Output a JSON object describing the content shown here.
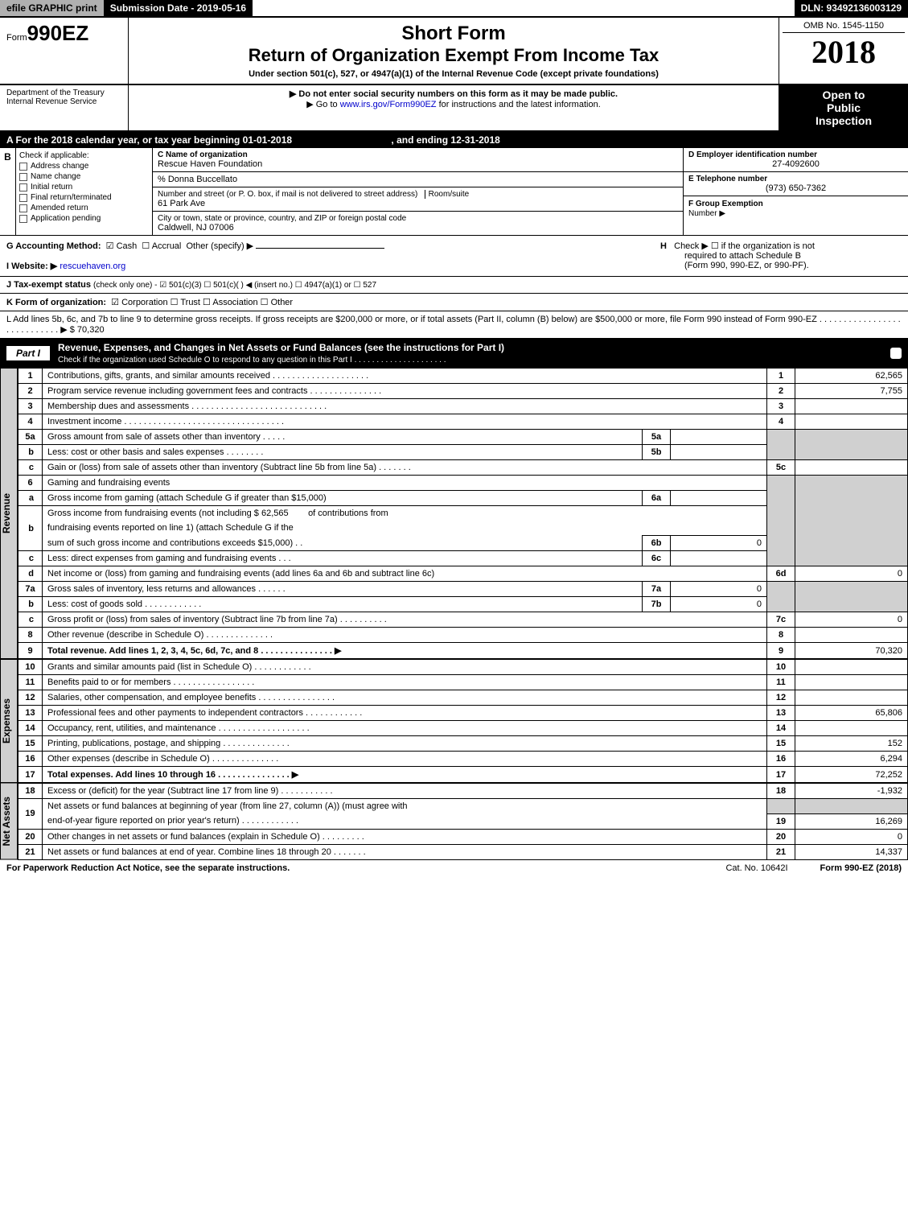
{
  "top": {
    "efile": "efile GRAPHIC print",
    "submission": "Submission Date - 2019-05-16",
    "dln": "DLN: 93492136003129"
  },
  "header": {
    "form_prefix": "Form",
    "form_number": "990EZ",
    "short_form": "Short Form",
    "title": "Return of Organization Exempt From Income Tax",
    "subtitle": "Under section 501(c), 527, or 4947(a)(1) of the Internal Revenue Code (except private foundations)",
    "omb": "OMB No. 1545-1150",
    "year": "2018",
    "dept": "Department of the Treasury",
    "irs": "Internal Revenue Service",
    "notice1": "▶ Do not enter social security numbers on this form as it may be made public.",
    "notice2_pre": "▶ Go to ",
    "notice2_link": "www.irs.gov/Form990EZ",
    "notice2_post": " for instructions and the latest information.",
    "open": "Open to",
    "public": "Public",
    "inspection": "Inspection"
  },
  "period": {
    "a_text": "A For the 2018 calendar year, or tax year beginning 01-01-2018",
    "ending": ", and ending 12-31-2018"
  },
  "box_b": {
    "label_b": "B",
    "check_if": "Check if applicable:",
    "opts": [
      "Address change",
      "Name change",
      "Initial return",
      "Final return/terminated",
      "Amended return",
      "Application pending"
    ]
  },
  "box_c": {
    "c_label": "C Name of organization",
    "org_name": "Rescue Haven Foundation",
    "care_of": "% Donna Buccellato",
    "addr_label": "Number and street (or P. O. box, if mail is not delivered to street address)",
    "room_label": "Room/suite",
    "addr": "61 Park Ave",
    "city_label": "City or town, state or province, country, and ZIP or foreign postal code",
    "city": "Caldwell, NJ  07006"
  },
  "box_d": {
    "d_label": "D Employer identification number",
    "ein": "27-4092600",
    "e_label": "E Telephone number",
    "phone": "(973) 650-7362",
    "f_label": "F Group Exemption",
    "f_label2": "Number   ▶"
  },
  "row_g": {
    "g_label": "G Accounting Method:",
    "cash": "Cash",
    "accrual": "Accrual",
    "other": "Other (specify) ▶",
    "h_label": "H",
    "h_text1": "Check ▶   ☐  if the organization is not",
    "h_text2": "required to attach Schedule B",
    "h_text3": "(Form 990, 990-EZ, or 990-PF)."
  },
  "row_i": {
    "label": "I Website: ▶",
    "site": "rescuehaven.org"
  },
  "row_j": {
    "label": "J Tax-exempt status",
    "rest": "(check only one) - ☑ 501(c)(3)  ☐ 501(c)(  ) ◀ (insert no.)  ☐ 4947(a)(1) or  ☐ 527"
  },
  "row_k": {
    "label": "K Form of organization:",
    "rest": "☑ Corporation   ☐ Trust   ☐ Association   ☐ Other"
  },
  "row_l": {
    "text": "L Add lines 5b, 6c, and 7b to line 9 to determine gross receipts. If gross receipts are $200,000 or more, or if total assets (Part II, column (B) below) are $500,000 or more, file Form 990 instead of Form 990-EZ  .  .  .  .  .  .  .  .  .  .  .  .  .  .  .  .  .  .  .  .  .  .  .  .  .  .  .  .  ▶ $ 70,320"
  },
  "part1": {
    "label": "Part I",
    "title": "Revenue, Expenses, and Changes in Net Assets or Fund Balances (see the instructions for Part I)",
    "sub": "Check if the organization used Schedule O to respond to any question in this Part I  .  .  .  .  .  .  .  .  .  .  .  .  .  .  .  .  .  .  .  .  .  "
  },
  "tabs": {
    "revenue": "Revenue",
    "expenses": "Expenses",
    "netassets": "Net Assets"
  },
  "lines": {
    "l1": {
      "n": "1",
      "d": "Contributions, gifts, grants, and similar amounts received  .  .  .  .  .  .  .  .  .  .  .  .  .  .  .  .  .  .  .  .",
      "c": "1",
      "v": "62,565"
    },
    "l2": {
      "n": "2",
      "d": "Program service revenue including government fees and contracts  .  .  .  .  .  .  .  .  .  .  .  .  .  .  .",
      "c": "2",
      "v": "7,755"
    },
    "l3": {
      "n": "3",
      "d": "Membership dues and assessments  .  .  .  .  .  .  .  .  .  .  .  .  .  .  .  .  .  .  .  .  .  .  .  .  .  .  .  .",
      "c": "3",
      "v": ""
    },
    "l4": {
      "n": "4",
      "d": "Investment income  .  .  .  .  .  .  .  .  .  .  .  .  .  .  .  .  .  .  .  .  .  .  .  .  .  .  .  .  .  .  .  .  .",
      "c": "4",
      "v": ""
    },
    "l5a": {
      "n": "5a",
      "d": "Gross amount from sale of assets other than inventory  .  .  .  .  .",
      "mc": "5a",
      "mv": ""
    },
    "l5b": {
      "n": "b",
      "d": "Less: cost or other basis and sales expenses  .  .  .  .  .  .  .  .",
      "mc": "5b",
      "mv": ""
    },
    "l5c": {
      "n": "c",
      "d": "Gain or (loss) from sale of assets other than inventory (Subtract line 5b from line 5a) .  .  .  .  .  .  .",
      "c": "5c",
      "v": ""
    },
    "l6": {
      "n": "6",
      "d": "Gaming and fundraising events"
    },
    "l6a": {
      "n": "a",
      "d": "Gross income from gaming (attach Schedule G if greater than $15,000)",
      "mc": "6a",
      "mv": ""
    },
    "l6b": {
      "n": "b",
      "d1": "Gross income from fundraising events (not including $  62,565",
      "d1b": "of contributions from",
      "d2": "fundraising events reported on line 1) (attach Schedule G if the",
      "d3": "sum of such gross income and contributions exceeds $15,000)   .   .",
      "mc": "6b",
      "mv": "0"
    },
    "l6c": {
      "n": "c",
      "d": "Less: direct expenses from gaming and fundraising events    .   .   .",
      "mc": "6c",
      "mv": ""
    },
    "l6d": {
      "n": "d",
      "d": "Net income or (loss) from gaming and fundraising events (add lines 6a and 6b and subtract line 6c)",
      "c": "6d",
      "v": "0"
    },
    "l7a": {
      "n": "7a",
      "d": "Gross sales of inventory, less returns and allowances  .  .  .  .  .  .",
      "mc": "7a",
      "mv": "0"
    },
    "l7b": {
      "n": "b",
      "d": "Less: cost of goods sold         .   .   .   .   .   .   .   .   .   .   .   .",
      "mc": "7b",
      "mv": "0"
    },
    "l7c": {
      "n": "c",
      "d": "Gross profit or (loss) from sales of inventory (Subtract line 7b from line 7a)  .  .  .  .  .  .  .  .  .  .",
      "c": "7c",
      "v": "0"
    },
    "l8": {
      "n": "8",
      "d": "Other revenue (describe in Schedule O)                    .   .   .   .   .   .   .   .   .   .   .   .   .   .",
      "c": "8",
      "v": ""
    },
    "l9": {
      "n": "9",
      "d": "Total revenue. Add lines 1, 2, 3, 4, 5c, 6d, 7c, and 8  .   .   .   .   .   .   .   .   .   .   .   .   .   .   .   ▶",
      "c": "9",
      "v": "70,320"
    },
    "l10": {
      "n": "10",
      "d": "Grants and similar amounts paid (list in Schedule O)           .   .   .   .   .   .   .   .   .   .   .   .",
      "c": "10",
      "v": ""
    },
    "l11": {
      "n": "11",
      "d": "Benefits paid to or for members              .   .   .   .   .   .   .   .   .   .   .   .   .   .   .   .   .",
      "c": "11",
      "v": ""
    },
    "l12": {
      "n": "12",
      "d": "Salaries, other compensation, and employee benefits  .   .   .   .   .   .   .   .   .   .   .   .   .   .   .   .",
      "c": "12",
      "v": ""
    },
    "l13": {
      "n": "13",
      "d": "Professional fees and other payments to independent contractors  .   .   .   .   .   .   .   .   .   .   .   .",
      "c": "13",
      "v": "65,806"
    },
    "l14": {
      "n": "14",
      "d": "Occupancy, rent, utilities, and maintenance .   .   .   .   .   .   .   .   .   .   .   .   .   .   .   .   .   .   .",
      "c": "14",
      "v": ""
    },
    "l15": {
      "n": "15",
      "d": "Printing, publications, postage, and shipping            .   .   .   .   .   .   .   .   .   .   .   .   .   .",
      "c": "15",
      "v": "152"
    },
    "l16": {
      "n": "16",
      "d": "Other expenses (describe in Schedule O)               .   .   .   .   .   .   .   .   .   .   .   .   .   .",
      "c": "16",
      "v": "6,294"
    },
    "l17": {
      "n": "17",
      "d": "Total expenses. Add lines 10 through 16         .   .   .   .   .   .   .   .   .   .   .   .   .   .   .   ▶",
      "c": "17",
      "v": "72,252"
    },
    "l18": {
      "n": "18",
      "d": "Excess or (deficit) for the year (Subtract line 17 from line 9)       .   .   .   .   .   .   .   .   .   .   .",
      "c": "18",
      "v": "-1,932"
    },
    "l19": {
      "n": "19",
      "d1": "Net assets or fund balances at beginning of year (from line 27, column (A)) (must agree with",
      "d2": "end-of-year figure reported on prior year's return)           .   .   .   .   .   .   .   .   .   .   .   .",
      "c": "19",
      "v": "16,269"
    },
    "l20": {
      "n": "20",
      "d": "Other changes in net assets or fund balances (explain in Schedule O)    .   .   .   .   .   .   .   .   .",
      "c": "20",
      "v": "0"
    },
    "l21": {
      "n": "21",
      "d": "Net assets or fund balances at end of year. Combine lines 18 through 20       .   .   .   .   .   .   .",
      "c": "21",
      "v": "14,337"
    }
  },
  "footer": {
    "paperwork": "For Paperwork Reduction Act Notice, see the separate instructions.",
    "cat": "Cat. No. 10642I",
    "formref": "Form 990-EZ (2018)"
  },
  "colors": {
    "black": "#000000",
    "gray_strip": "#b0b0b0",
    "shade": "#d0d0d0",
    "link": "#0000cc"
  }
}
